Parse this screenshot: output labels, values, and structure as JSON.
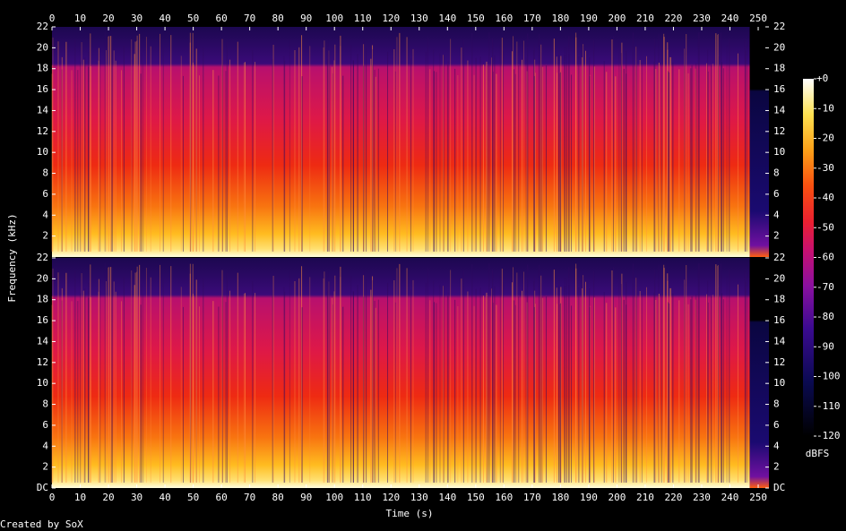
{
  "chart_data": {
    "type": "spectrogram",
    "xlabel": "Time (s)",
    "ylabel": "Frequency (kHz)",
    "xlim": [
      0,
      253.8
    ],
    "xticks": [
      0,
      10,
      20,
      30,
      40,
      50,
      60,
      70,
      80,
      90,
      100,
      110,
      120,
      130,
      140,
      150,
      160,
      170,
      180,
      190,
      200,
      210,
      220,
      230,
      240,
      250
    ],
    "ylim": [
      0,
      22
    ],
    "yticks": [
      {
        "value": 0,
        "label": "DC"
      },
      2,
      4,
      6,
      8,
      10,
      12,
      14,
      16,
      18,
      20,
      22
    ],
    "colorbar": {
      "label": "dBFS",
      "lim": [
        -120,
        0
      ],
      "ticks": [
        {
          "value": 0,
          "label": "+0"
        },
        -10,
        -20,
        -30,
        -40,
        -50,
        -60,
        -70,
        -80,
        -90,
        -100,
        -110,
        -120
      ]
    },
    "credit": "Created by SoX"
  }
}
